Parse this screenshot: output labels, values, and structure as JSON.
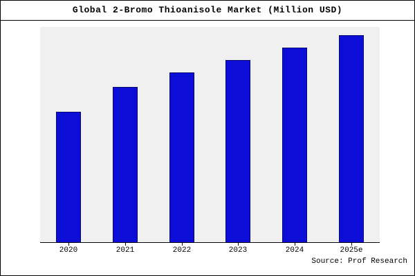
{
  "source": "Source: Prof Research",
  "chart_data": {
    "type": "bar",
    "title": "Global 2-Bromo Thioanisole Market (Million USD)",
    "categories": [
      "2020",
      "2021",
      "2022",
      "2023",
      "2024",
      "2025e"
    ],
    "values": [
      63,
      75,
      82,
      88,
      94,
      100
    ],
    "xlabel": "",
    "ylabel": "",
    "ylim": [
      0,
      104
    ],
    "grid": false,
    "legend": false,
    "y_axis_labels_visible": false,
    "bar_color": "#0d0dd8",
    "bar_edge_color": "#050570",
    "plot_background": "#f0f0f0",
    "annotation": "Source: Prof Research"
  }
}
